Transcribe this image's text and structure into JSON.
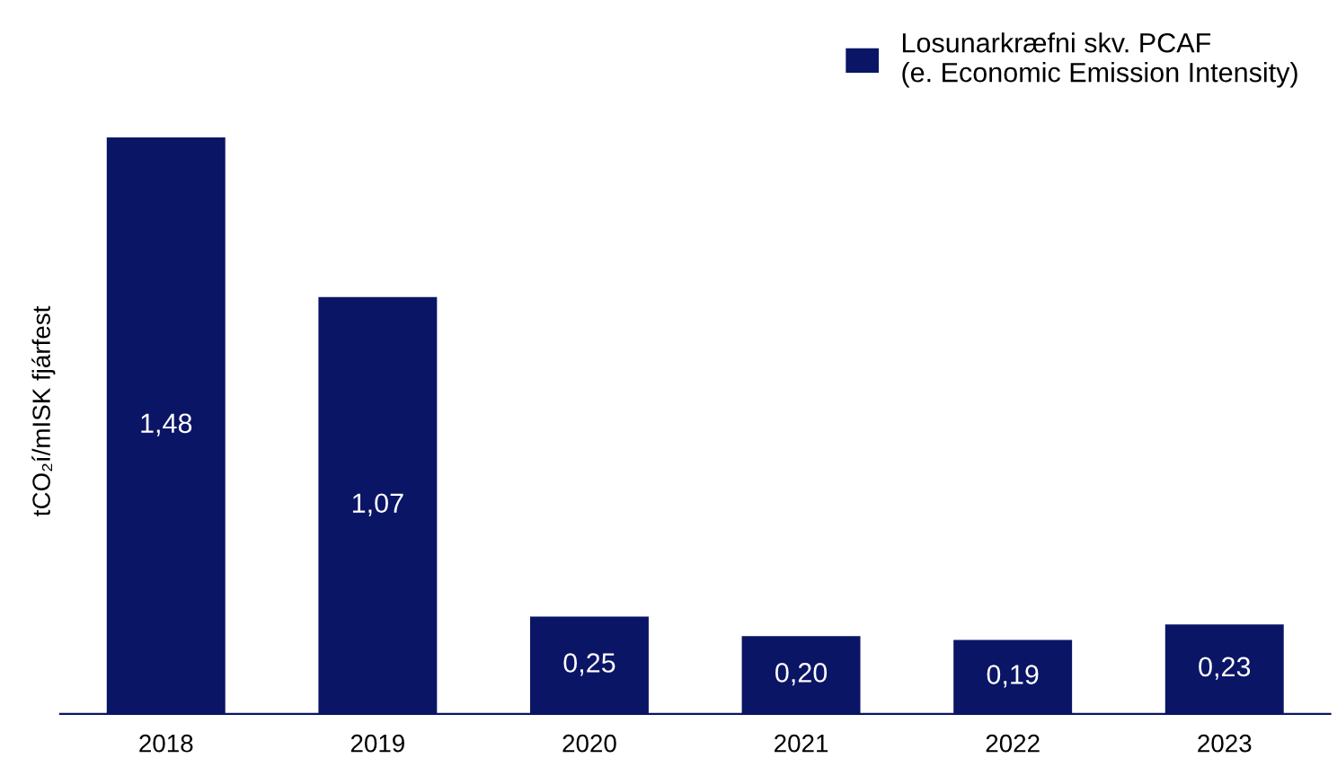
{
  "chart_data": {
    "type": "bar",
    "ylabel": "tCO₂í/mISK fjárfest",
    "categories": [
      "2018",
      "2019",
      "2020",
      "2021",
      "2022",
      "2023"
    ],
    "series": [
      {
        "name": "Losunarkræfni skv. PCAF\n(e. Economic Emission Intensity)",
        "color": "#0b1565",
        "values": [
          1.48,
          1.07,
          0.25,
          0.2,
          0.19,
          0.23
        ],
        "value_labels": [
          "1,48",
          "1,07",
          "0,25",
          "0,20",
          "0,19",
          "0,23"
        ]
      }
    ],
    "grid": false,
    "legend": "top right"
  }
}
